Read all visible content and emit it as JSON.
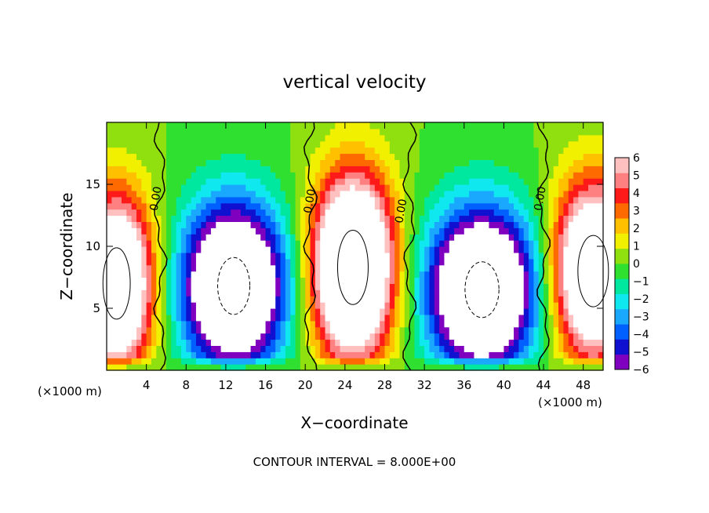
{
  "chart_data": {
    "type": "heatmap",
    "title": "vertical velocity",
    "xlabel": "X−coordinate",
    "ylabel": "Z−coordinate",
    "x_unit_left": "(×1000 m)",
    "x_unit_right": "(×1000 m)",
    "footer": "CONTOUR INTERVAL = 8.000E+00",
    "xlim": [
      0,
      50
    ],
    "ylim": [
      0,
      20
    ],
    "x_ticks": [
      4,
      8,
      12,
      16,
      20,
      24,
      28,
      32,
      36,
      40,
      44,
      48
    ],
    "x_tick_labels": [
      "4",
      "8",
      "12",
      "16",
      "20",
      "24",
      "28",
      "32",
      "36",
      "40",
      "44",
      "48"
    ],
    "y_ticks": [
      5,
      10,
      15
    ],
    "y_tick_labels": [
      "5",
      "10",
      "15"
    ],
    "colorbar": {
      "range": [
        -6,
        6
      ],
      "tick_values": [
        6,
        5,
        4,
        3,
        2,
        1,
        0,
        -1,
        -2,
        -3,
        -4,
        -5,
        -6
      ],
      "tick_labels": [
        "6",
        "5",
        "4",
        "3",
        "2",
        "1",
        "0",
        "−1",
        "−2",
        "−3",
        "−4",
        "−5",
        "−6"
      ],
      "colors": [
        "#7f00bf",
        "#1010d0",
        "#0060ff",
        "#1aa8ff",
        "#10e8f0",
        "#00e8a0",
        "#30e030",
        "#90e010",
        "#f0f000",
        "#ffc000",
        "#ff6a00",
        "#ff1a1a",
        "#ff8080",
        "#ffc0c0"
      ]
    },
    "zero_contour_labels": [
      "0.00",
      "0.00",
      "0.00",
      "0.00"
    ],
    "zero_contour_label_positions": [
      [
        5.3,
        13.8
      ],
      [
        20.8,
        13.6
      ],
      [
        30.0,
        12.8
      ],
      [
        44.0,
        13.8
      ]
    ],
    "zero_contour_x_positions": [
      5.4,
      20.5,
      30.5,
      44.0
    ],
    "updraft_cores": [
      {
        "x": 1.0,
        "z": 7.0,
        "sx": 2.5,
        "sz": 4.8,
        "w": 12
      },
      {
        "x": 24.8,
        "z": 8.3,
        "sx": 2.8,
        "sz": 5.0,
        "w": 14
      },
      {
        "x": 49.0,
        "z": 8.0,
        "sx": 2.8,
        "sz": 4.8,
        "w": 12
      }
    ],
    "downdraft_cores": [
      {
        "x": 12.8,
        "z": 6.8,
        "sx": 3.6,
        "sz": 4.6,
        "w": -12
      },
      {
        "x": 37.8,
        "z": 6.5,
        "sx": 3.8,
        "sz": 4.5,
        "w": -12
      }
    ]
  }
}
